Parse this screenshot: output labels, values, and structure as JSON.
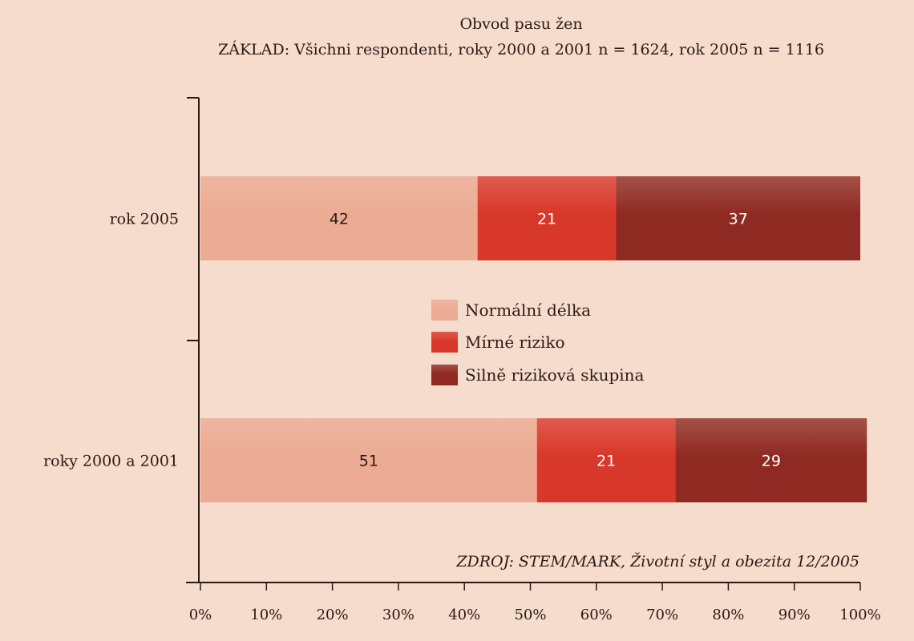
{
  "chart_data": {
    "type": "bar",
    "orientation": "horizontal",
    "stacked": true,
    "title": "Obvod pasu žen",
    "subtitle": "ZÁKLAD: Všichni respondenti, roky 2000 a 2001 n = 1624, rok 2005 n = 1116",
    "categories": [
      "rok 2005",
      "roky 2000 a 2001"
    ],
    "series": [
      {
        "name": "Normální délka",
        "values": [
          42,
          51
        ],
        "color": "#ecab94"
      },
      {
        "name": "Mírné riziko",
        "values": [
          21,
          21
        ],
        "color": "#d8382a"
      },
      {
        "name": "Silně riziková skupina",
        "values": [
          37,
          29
        ],
        "color": "#8e2a22"
      }
    ],
    "xlim": [
      0,
      100
    ],
    "xticks": [
      "0%",
      "10%",
      "20%",
      "30%",
      "40%",
      "50%",
      "60%",
      "70%",
      "80%",
      "90%",
      "100%"
    ],
    "legend_position": "center",
    "grid": false,
    "source": "ZDROJ: STEM/MARK, Životní styl a obezita 12/2005"
  },
  "colors": {
    "background": "#f5dccd",
    "axis": "#2a1a14",
    "label_dark": "#2a1a14",
    "label_light": "#ffffff"
  }
}
